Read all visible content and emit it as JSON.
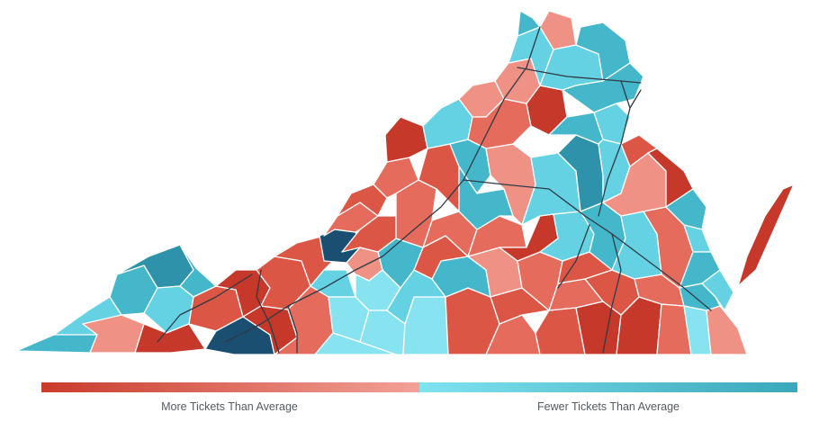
{
  "legend": {
    "more_label": "More Tickets Than Average",
    "fewer_label": "Fewer Tickets Than Average",
    "colors": {
      "more_start": "#c93b2b",
      "more_end": "#f2a197",
      "fewer_start": "#7fe3f0",
      "fewer_end": "#3aa7bb"
    }
  },
  "map": {
    "region": "Virginia",
    "palette": {
      "dark_red": "#c5382a",
      "red": "#dc5646",
      "mid_red": "#e56b5c",
      "light_red": "#ef9185",
      "pale_cyan": "#86e3ef",
      "cyan": "#64d2e3",
      "teal": "#45b7cb",
      "dark_teal": "#2e93aa",
      "navy": "#1b4f72"
    }
  }
}
